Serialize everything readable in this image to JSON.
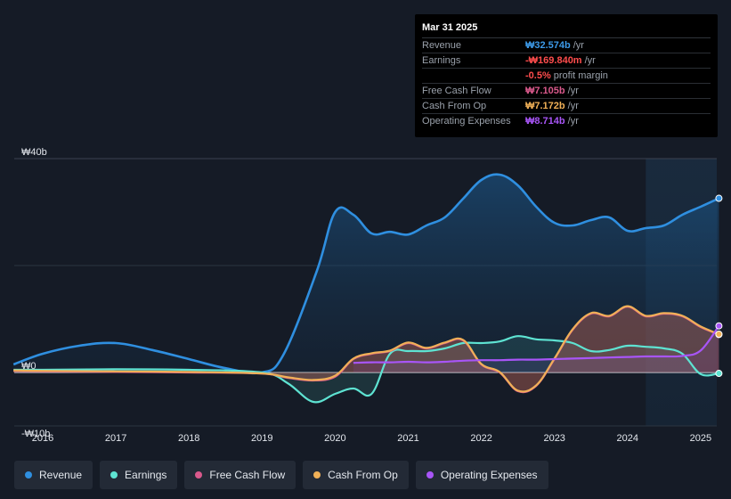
{
  "tooltip": {
    "date": "Mar 31 2025",
    "rows": [
      {
        "label": "Revenue",
        "value": "₩32.574b",
        "unit": "/yr",
        "color": "#3d9ae8"
      },
      {
        "label": "Earnings",
        "value": "-₩169.840m",
        "unit": "/yr",
        "color": "#ff4d4d"
      },
      {
        "label": "",
        "value": "-0.5%",
        "unit": "profit margin",
        "color": "#ff4d4d"
      },
      {
        "label": "Free Cash Flow",
        "value": "₩7.105b",
        "unit": "/yr",
        "color": "#d9598c"
      },
      {
        "label": "Cash From Op",
        "value": "₩7.172b",
        "unit": "/yr",
        "color": "#f0b057"
      },
      {
        "label": "Operating Expenses",
        "value": "₩8.714b",
        "unit": "/yr",
        "color": "#a855f7"
      }
    ]
  },
  "legend": [
    {
      "label": "Revenue",
      "color": "#2f8fe0"
    },
    {
      "label": "Earnings",
      "color": "#5ee3d2"
    },
    {
      "label": "Free Cash Flow",
      "color": "#d9598c"
    },
    {
      "label": "Cash From Op",
      "color": "#f0b057"
    },
    {
      "label": "Operating Expenses",
      "color": "#a855f7"
    }
  ],
  "chart_data": {
    "type": "area",
    "title": "",
    "xlabel": "",
    "ylabel": "",
    "unit": "KRW billions",
    "ylim": [
      -10,
      40
    ],
    "y_tick_labels": [
      "₩40b",
      "₩0",
      "-₩10b"
    ],
    "y_ticks": [
      40,
      0,
      -10
    ],
    "x_tick_labels": [
      "2016",
      "2017",
      "2018",
      "2019",
      "2020",
      "2021",
      "2022",
      "2023",
      "2024",
      "2025"
    ],
    "x_ticks": [
      2016,
      2017,
      2018,
      2019,
      2020,
      2021,
      2022,
      2023,
      2024,
      2025
    ],
    "xlim": [
      2015.6,
      2025.25
    ],
    "forecast_shade_start": 2024.25,
    "series": [
      {
        "name": "Revenue",
        "color": "#2f8fe0",
        "x": [
          2015.6,
          2016.0,
          2016.5,
          2017.0,
          2017.5,
          2018.0,
          2018.5,
          2019.0,
          2019.3,
          2019.75,
          2020.0,
          2020.25,
          2020.5,
          2020.75,
          2021.0,
          2021.25,
          2021.5,
          2021.75,
          2022.0,
          2022.25,
          2022.5,
          2022.75,
          2023.0,
          2023.25,
          2023.5,
          2023.75,
          2024.0,
          2024.25,
          2024.5,
          2024.75,
          2025.0,
          2025.25
        ],
        "values": [
          1.5,
          3.5,
          5.0,
          5.5,
          4.2,
          2.5,
          0.8,
          0.0,
          3.5,
          19.0,
          30.0,
          29.5,
          26.0,
          26.3,
          25.8,
          27.5,
          29.0,
          32.5,
          36.0,
          37.0,
          35.0,
          31.0,
          28.0,
          27.5,
          28.5,
          29.0,
          26.5,
          27.0,
          27.5,
          29.5,
          31.0,
          32.574
        ]
      },
      {
        "name": "Earnings",
        "color": "#5ee3d2",
        "x": [
          2015.6,
          2016.0,
          2017.0,
          2018.0,
          2019.0,
          2019.35,
          2019.7,
          2020.0,
          2020.25,
          2020.5,
          2020.75,
          2021.0,
          2021.25,
          2021.5,
          2021.75,
          2022.0,
          2022.25,
          2022.5,
          2022.75,
          2023.0,
          2023.25,
          2023.5,
          2023.75,
          2024.0,
          2024.25,
          2024.5,
          2024.75,
          2025.0,
          2025.25
        ],
        "values": [
          0.5,
          0.5,
          0.6,
          0.5,
          0.0,
          -2.0,
          -5.5,
          -4.0,
          -3.0,
          -4.0,
          3.5,
          4.0,
          4.0,
          4.5,
          5.5,
          5.5,
          5.8,
          6.8,
          6.2,
          6.0,
          5.5,
          4.0,
          4.2,
          5.0,
          4.8,
          4.5,
          3.5,
          -0.3,
          -0.17
        ]
      },
      {
        "name": "Free Cash Flow",
        "color": "#d9598c",
        "x": [
          2015.6,
          2016.0,
          2017.0,
          2018.0,
          2019.0,
          2019.35,
          2019.7,
          2020.0,
          2020.25,
          2020.5,
          2020.75,
          2021.0,
          2021.25,
          2021.5,
          2021.75,
          2022.0,
          2022.25,
          2022.5,
          2022.75,
          2023.0,
          2023.25,
          2023.5,
          2023.75,
          2024.0,
          2024.25,
          2024.5,
          2024.75,
          2025.0,
          2025.25
        ],
        "values": [
          0.3,
          0.2,
          0.1,
          0.0,
          -0.2,
          -1.0,
          -1.5,
          -0.8,
          2.5,
          3.5,
          4.0,
          5.5,
          4.5,
          5.5,
          6.0,
          1.5,
          0.0,
          -3.5,
          -2.5,
          2.5,
          8.0,
          11.0,
          10.5,
          12.3,
          10.5,
          11.0,
          10.5,
          8.5,
          7.105
        ]
      },
      {
        "name": "Cash From Op",
        "color": "#f0b057",
        "x": [
          2015.6,
          2016.0,
          2017.0,
          2018.0,
          2019.0,
          2019.35,
          2019.7,
          2020.0,
          2020.25,
          2020.5,
          2020.75,
          2021.0,
          2021.25,
          2021.5,
          2021.75,
          2022.0,
          2022.25,
          2022.5,
          2022.75,
          2023.0,
          2023.25,
          2023.5,
          2023.75,
          2024.0,
          2024.25,
          2024.5,
          2024.75,
          2025.0,
          2025.25
        ],
        "values": [
          0.4,
          0.3,
          0.2,
          0.1,
          -0.2,
          -0.9,
          -1.4,
          -0.6,
          2.6,
          3.6,
          4.1,
          5.6,
          4.6,
          5.6,
          6.1,
          1.6,
          0.1,
          -3.4,
          -2.4,
          2.6,
          8.1,
          11.1,
          10.6,
          12.4,
          10.6,
          11.1,
          10.6,
          8.6,
          7.172
        ]
      },
      {
        "name": "Operating Expenses",
        "color": "#a855f7",
        "x": [
          2020.25,
          2020.5,
          2020.75,
          2021.0,
          2021.25,
          2021.5,
          2021.75,
          2022.0,
          2022.25,
          2022.5,
          2022.75,
          2023.0,
          2023.25,
          2023.5,
          2023.75,
          2024.0,
          2024.25,
          2024.5,
          2024.75,
          2025.0,
          2025.25
        ],
        "values": [
          1.8,
          1.9,
          1.9,
          2.0,
          1.9,
          2.0,
          2.2,
          2.3,
          2.3,
          2.4,
          2.4,
          2.5,
          2.6,
          2.7,
          2.8,
          2.9,
          3.0,
          3.0,
          3.1,
          4.1,
          8.714
        ]
      }
    ]
  }
}
